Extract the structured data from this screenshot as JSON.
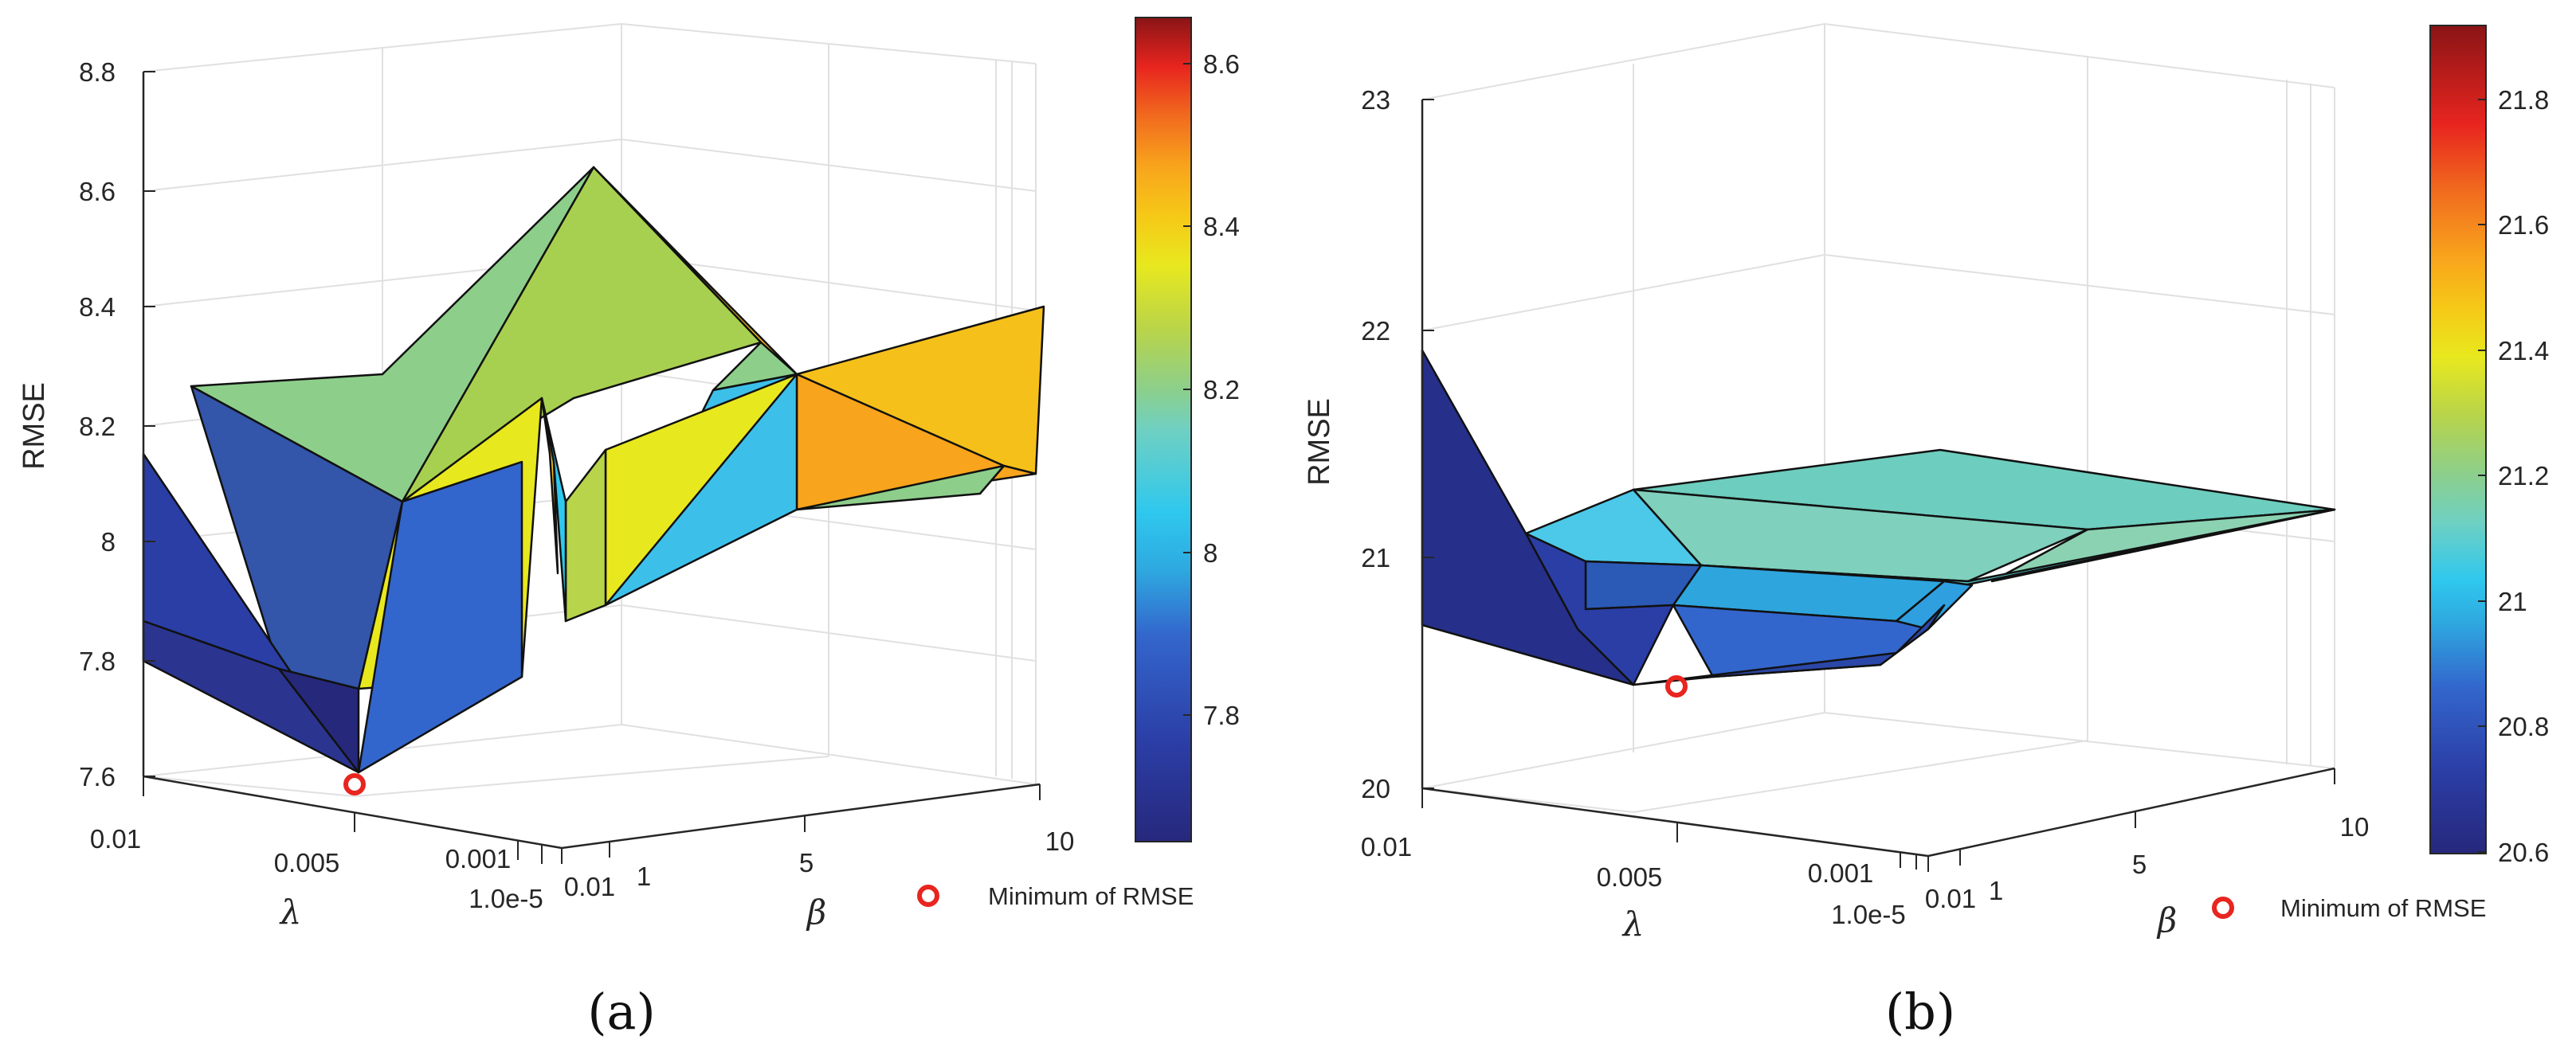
{
  "chart_data": [
    {
      "type": "surface",
      "panel_label": "(a)",
      "zlabel": "RMSE",
      "xlabel": "λ",
      "ylabel": "β",
      "zlim": [
        7.6,
        8.8
      ],
      "z_ticks": [
        "7.6",
        "7.8",
        "8",
        "8.2",
        "8.4",
        "8.6",
        "8.8"
      ],
      "lambda_ticks": [
        "0.01",
        "0.005",
        "0.001",
        "1.0e-5"
      ],
      "beta_ticks": [
        "0.01",
        "1",
        "5",
        "10"
      ],
      "colorbar": {
        "range": [
          7.65,
          8.66
        ],
        "ticks": [
          "7.8",
          "8",
          "8.2",
          "8.4",
          "8.6"
        ]
      },
      "minimum": {
        "lambda": 0.005,
        "beta": 0.01,
        "rmse": 7.59
      },
      "legend": "Minimum of RMSE"
    },
    {
      "type": "surface",
      "panel_label": "(b)",
      "zlabel": "RMSE",
      "xlabel": "λ",
      "ylabel": "β",
      "zlim": [
        20,
        23
      ],
      "z_ticks": [
        "20",
        "21",
        "22",
        "23"
      ],
      "lambda_ticks": [
        "0.01",
        "0.005",
        "0.001",
        "1.0e-5"
      ],
      "beta_ticks": [
        "0.01",
        "1",
        "5",
        "10"
      ],
      "colorbar": {
        "range": [
          20.6,
          21.92
        ],
        "ticks": [
          "20.6",
          "20.8",
          "21",
          "21.2",
          "21.4",
          "21.6",
          "21.8"
        ]
      },
      "minimum": {
        "lambda": 0.005,
        "beta": 0.01,
        "rmse": 20.44
      },
      "legend": "Minimum of RMSE"
    }
  ]
}
